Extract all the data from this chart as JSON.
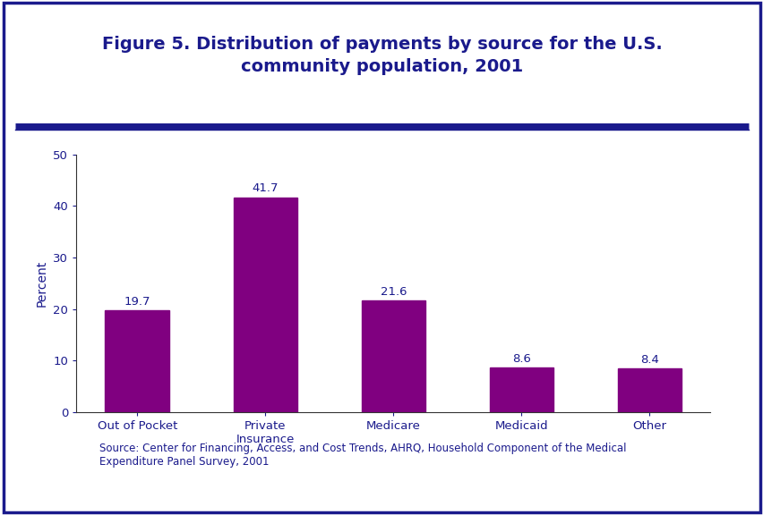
{
  "title": "Figure 5. Distribution of payments by source for the U.S.\ncommunity population, 2001",
  "categories": [
    "Out of Pocket",
    "Private\nInsurance",
    "Medicare",
    "Medicaid",
    "Other"
  ],
  "values": [
    19.7,
    41.7,
    21.6,
    8.6,
    8.4
  ],
  "bar_color": "#800080",
  "ylabel": "Percent",
  "ylim": [
    0,
    50
  ],
  "yticks": [
    0,
    10,
    20,
    30,
    40,
    50
  ],
  "title_color": "#1a1a8c",
  "title_fontsize": 14,
  "label_fontsize": 10,
  "tick_fontsize": 9.5,
  "value_fontsize": 9.5,
  "source_text": "Source: Center for Financing, Access, and Cost Trends, AHRQ, Household Component of the Medical\nExpenditure Panel Survey, 2001",
  "source_fontsize": 8.5,
  "bg_color": "#ffffff",
  "border_color": "#1a1a8c",
  "header_line_color": "#1a1a8c",
  "bar_width": 0.5
}
